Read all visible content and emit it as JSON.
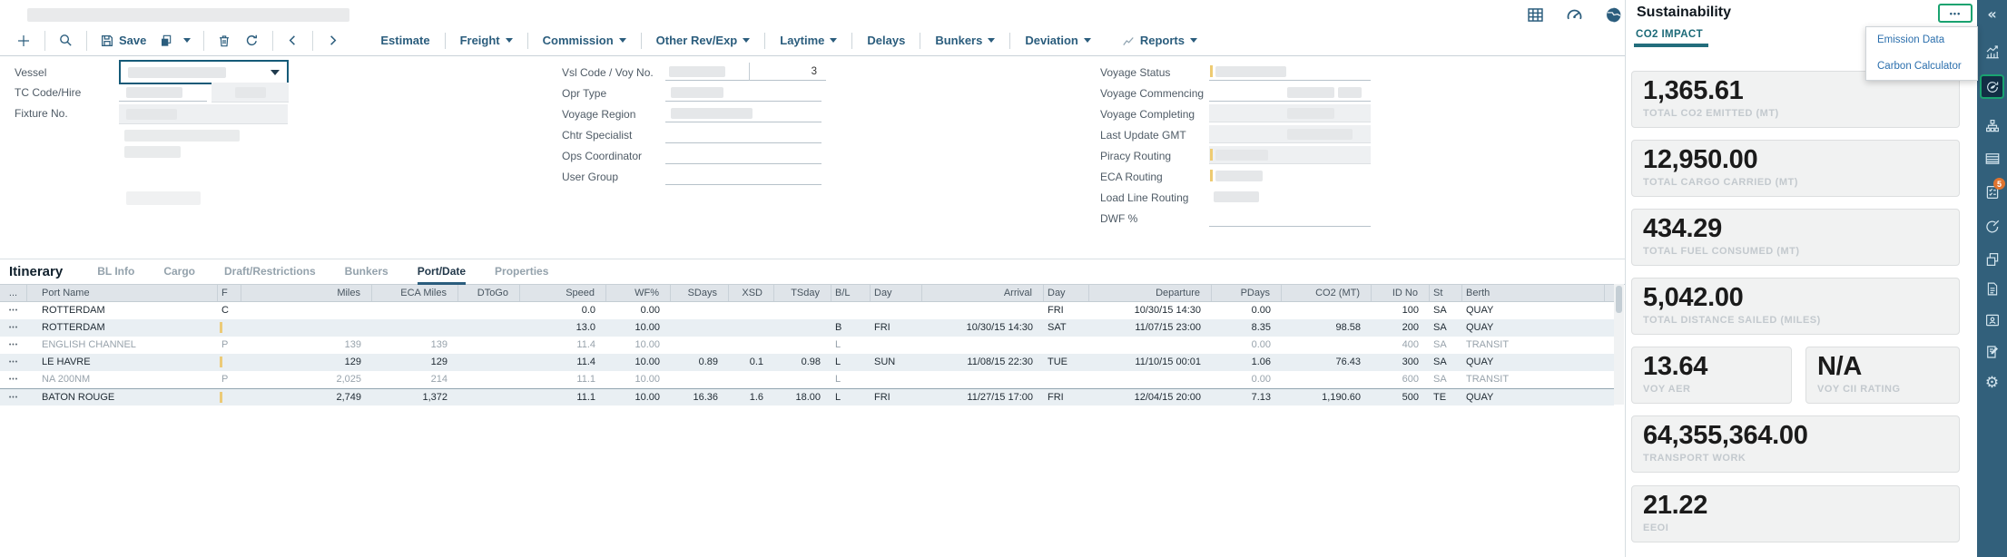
{
  "toolbar": {
    "save": "Save",
    "menus": [
      {
        "label": "Estimate",
        "caret": false
      },
      {
        "label": "Freight",
        "caret": true
      },
      {
        "label": "Commission",
        "caret": true
      },
      {
        "label": "Other Rev/Exp",
        "caret": true
      },
      {
        "label": "Laytime",
        "caret": true
      },
      {
        "label": "Delays",
        "caret": false
      },
      {
        "label": "Bunkers",
        "caret": true
      },
      {
        "label": "Deviation",
        "caret": true
      },
      {
        "label": "Reports",
        "caret": true
      }
    ]
  },
  "form": {
    "labels_left": [
      "Vessel",
      "TC Code/Hire",
      "Fixture No."
    ],
    "labels_middle": [
      "Vsl Code / Voy No.",
      "Opr Type",
      "Voyage Region",
      "Chtr Specialist",
      "Ops Coordinator",
      "User Group"
    ],
    "voyage_no": "3",
    "labels_right": [
      "Voyage Status",
      "Voyage Commencing",
      "Voyage Completing",
      "Last Update GMT",
      "Piracy Routing",
      "ECA Routing",
      "Load Line Routing",
      "DWF %"
    ]
  },
  "itinerary": {
    "title": "Itinerary",
    "tabs": [
      "BL Info",
      "Cargo",
      "Draft/Restrictions",
      "Bunkers",
      "Port/Date",
      "Properties"
    ],
    "active_tab": "Port/Date",
    "columns": [
      "...",
      "Port Name",
      "F",
      "Miles",
      "ECA Miles",
      "DToGo",
      "Speed",
      "WF%",
      "SDays",
      "XSD",
      "TSday",
      "B/L",
      "Day",
      "Arrival",
      "Day",
      "Departure",
      "PDays",
      "CO2 (MT)",
      "ID No",
      "St",
      "Berth"
    ],
    "rows": [
      {
        "cells": [
          "ROTTERDAM",
          "C",
          "",
          "",
          "",
          "0.0",
          "0.00",
          "",
          "",
          "",
          "",
          "",
          "",
          "FRI",
          "10/30/15 14:30",
          "0.00",
          "",
          "100",
          "SA",
          "QUAY"
        ],
        "muted": false,
        "shaded": false,
        "tick": false,
        "sep": false
      },
      {
        "cells": [
          "ROTTERDAM",
          "",
          "",
          "",
          "",
          "13.0",
          "10.00",
          "",
          "",
          "",
          "B",
          "FRI",
          "10/30/15 14:30",
          "SAT",
          "11/07/15 23:00",
          "8.35",
          "98.58",
          "200",
          "SA",
          "QUAY"
        ],
        "muted": false,
        "shaded": true,
        "tick": true,
        "sep": false
      },
      {
        "cells": [
          "ENGLISH CHANNEL",
          "P",
          "139",
          "139",
          "",
          "11.4",
          "10.00",
          "",
          "",
          "",
          "L",
          "",
          "",
          "",
          "",
          "0.00",
          "",
          "400",
          "SA",
          "TRANSIT"
        ],
        "muted": true,
        "shaded": false,
        "tick": false,
        "sep": false
      },
      {
        "cells": [
          "LE HAVRE",
          "",
          "129",
          "129",
          "",
          "11.4",
          "10.00",
          "0.89",
          "0.1",
          "0.98",
          "L",
          "SUN",
          "11/08/15 22:30",
          "TUE",
          "11/10/15 00:01",
          "1.06",
          "76.43",
          "300",
          "SA",
          "QUAY"
        ],
        "muted": false,
        "shaded": true,
        "tick": true,
        "sep": false
      },
      {
        "cells": [
          "NA 200NM",
          "P",
          "2,025",
          "214",
          "",
          "11.1",
          "10.00",
          "",
          "",
          "",
          "L",
          "",
          "",
          "",
          "",
          "0.00",
          "",
          "600",
          "SA",
          "TRANSIT"
        ],
        "muted": true,
        "shaded": false,
        "tick": false,
        "sep": false
      },
      {
        "cells": [
          "BATON ROUGE",
          "",
          "2,749",
          "1,372",
          "",
          "11.1",
          "10.00",
          "16.36",
          "1.6",
          "18.00",
          "L",
          "FRI",
          "11/27/15 17:00",
          "FRI",
          "12/04/15 20:00",
          "7.13",
          "1,190.60",
          "500",
          "TE",
          "QUAY"
        ],
        "muted": false,
        "shaded": true,
        "tick": true,
        "sep": true
      }
    ]
  },
  "sustainability": {
    "title": "Sustainability",
    "section": "CO2 IMPACT",
    "menu": [
      "Emission Data",
      "Carbon Calculator"
    ],
    "metrics": [
      {
        "value": "1,365.61",
        "label": "TOTAL CO2 EMITTED (MT)"
      },
      {
        "value": "12,950.00",
        "label": "TOTAL CARGO CARRIED (MT)"
      },
      {
        "value": "434.29",
        "label": "TOTAL FUEL CONSUMED (MT)"
      },
      {
        "value": "5,042.00",
        "label": "TOTAL DISTANCE SAILED (MILES)"
      },
      {
        "value": "13.64",
        "label": "VOY AER"
      },
      {
        "value": "N/A",
        "label": "VOY CII RATING"
      },
      {
        "value": "64,355,364.00",
        "label": "TRANSPORT WORK"
      },
      {
        "value": "21.22",
        "label": "EEOI"
      }
    ]
  },
  "sidebar": {
    "badge": "5"
  },
  "icons": {
    "more": "•••",
    "collapse": "«",
    "gear": "⚙",
    "row_menu": "•••"
  }
}
